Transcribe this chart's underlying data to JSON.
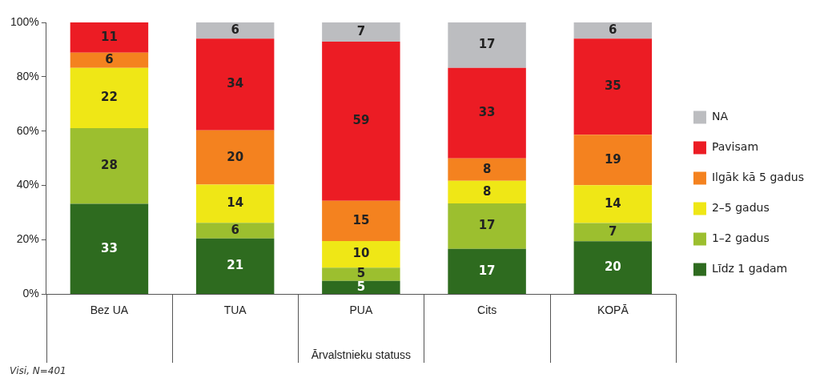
{
  "chart_data": {
    "type": "bar",
    "stacked": true,
    "xlabel": "Ārvalstnieku statuss",
    "annotations": [
      "Visi, N=401"
    ],
    "categories": [
      "Bez UA",
      "TUA",
      "PUA",
      "Cits",
      "KOPĀ"
    ],
    "series": [
      {
        "name": "Līdz 1 gadam",
        "color": "#2e6b1f",
        "values": [
          33.3,
          20.5,
          4.9,
          16.7,
          19.5
        ],
        "value_labels": [
          "33",
          "21",
          "5",
          "17",
          "20"
        ]
      },
      {
        "name": "1–2 gadus",
        "color": "#9cbf2f",
        "values": [
          27.8,
          5.8,
          4.9,
          16.7,
          6.7
        ],
        "value_labels": [
          "28",
          "6",
          "5",
          "17",
          "7"
        ]
      },
      {
        "name": "2–5 gadus",
        "color": "#efe716",
        "values": [
          22.2,
          14,
          9.8,
          8.3,
          13.9
        ],
        "value_labels": [
          "22",
          "14",
          "10",
          "8",
          "14"
        ]
      },
      {
        "name": "Ilgāk kā 5 gadus",
        "color": "#f4821f",
        "values": [
          5.6,
          20,
          14.8,
          8.3,
          18.6
        ],
        "value_labels": [
          "6",
          "20",
          "15",
          "8",
          "19"
        ]
      },
      {
        "name": "Pavisam",
        "color": "#ec1c24",
        "values": [
          11.1,
          33.7,
          58.5,
          33.3,
          35.3
        ],
        "value_labels": [
          "11",
          "34",
          "59",
          "33",
          "35"
        ]
      },
      {
        "name": "NA",
        "color": "#bcbdc0",
        "values": [
          null,
          6,
          7.1,
          16.7,
          6
        ],
        "value_labels": [
          null,
          "6",
          "7",
          "17",
          "6"
        ]
      }
    ],
    "ylim": [
      0,
      100
    ],
    "yticks": [
      {
        "value": 0,
        "label": "0%"
      },
      {
        "value": 20,
        "label": "20%"
      },
      {
        "value": 40,
        "label": "40%"
      },
      {
        "value": 60,
        "label": "60%"
      },
      {
        "value": 80,
        "label": "80%"
      },
      {
        "value": 100,
        "label": "100%"
      }
    ],
    "grid": false,
    "legend": "right"
  }
}
